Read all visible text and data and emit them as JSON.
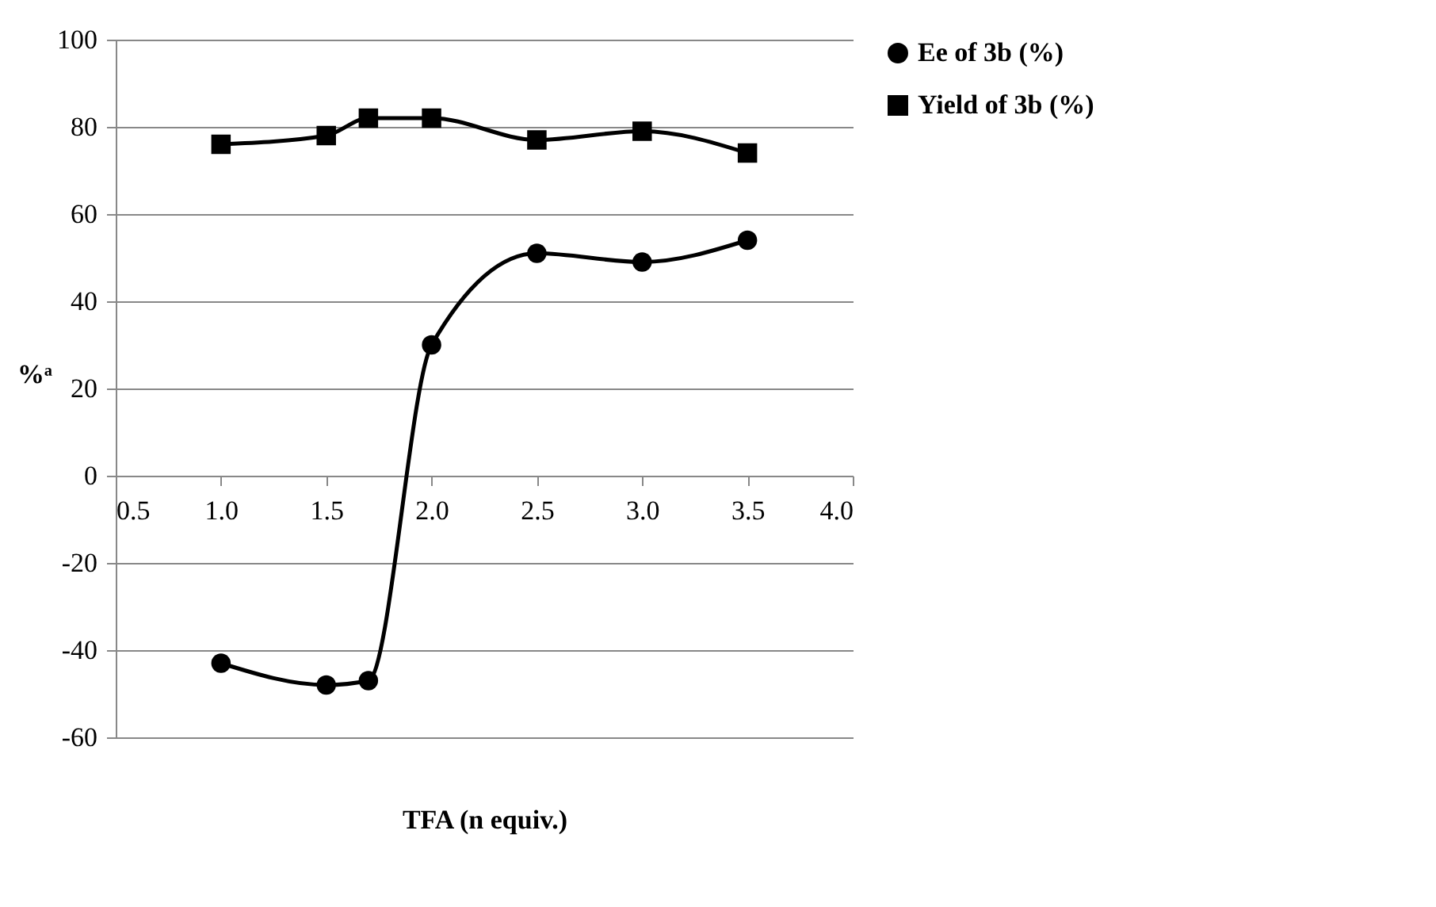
{
  "chart_data": {
    "type": "line",
    "xlabel": "TFA (n equiv.)",
    "ylabel": "%ᵃ",
    "x": [
      1.0,
      1.5,
      1.7,
      2.0,
      2.5,
      3.0,
      3.5
    ],
    "series": [
      {
        "name": "Ee of 3b (%)",
        "color": "#000000",
        "marker": "circle",
        "values": [
          -43,
          -48,
          -47,
          30,
          51,
          49,
          54
        ]
      },
      {
        "name": "Yield of 3b (%)",
        "color": "#000000",
        "marker": "square",
        "values": [
          76,
          78,
          82,
          82,
          77,
          79,
          74
        ]
      }
    ],
    "xlim": [
      0.5,
      4.0
    ],
    "xticks": [
      {
        "value": 0.5,
        "label": "0.5"
      },
      {
        "value": 1,
        "label": "1.0"
      },
      {
        "value": 1.5,
        "label": "1.5"
      },
      {
        "value": 2,
        "label": "2.0"
      },
      {
        "value": 2.5,
        "label": "2.5"
      },
      {
        "value": 3,
        "label": "3.0"
      },
      {
        "value": 3.5,
        "label": "3.5"
      },
      {
        "value": 4,
        "label": "4.0"
      }
    ],
    "ylim": [
      -60,
      100
    ],
    "yticks": [
      -60,
      -40,
      -20,
      0,
      20,
      40,
      60,
      80,
      100
    ],
    "grid": "y",
    "legend": "right",
    "line_style": "solid"
  }
}
